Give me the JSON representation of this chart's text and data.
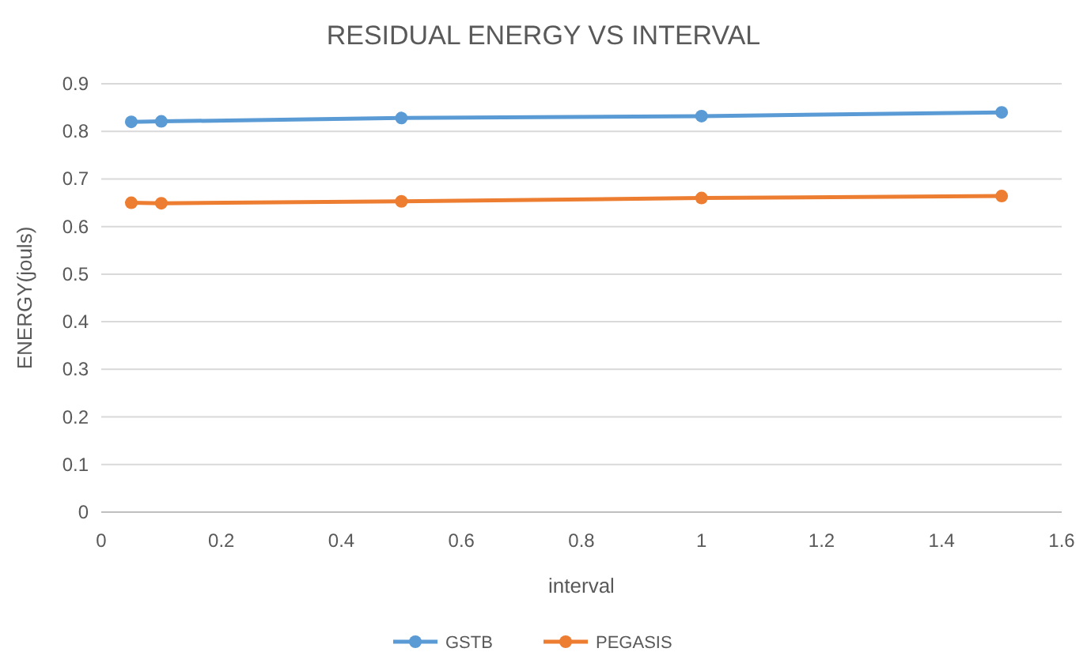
{
  "chart_data": {
    "type": "line",
    "title": "RESIDUAL ENERGY VS INTERVAL",
    "xlabel": "interval",
    "ylabel": "ENERGY(jouls)",
    "x": [
      0.05,
      0.1,
      0.5,
      1,
      1.5
    ],
    "series": [
      {
        "name": "GSTB",
        "color": "#5b9bd5",
        "values": [
          0.82,
          0.821,
          0.828,
          0.832,
          0.84
        ]
      },
      {
        "name": "PEGASIS",
        "color": "#ed7d31",
        "values": [
          0.65,
          0.649,
          0.653,
          0.66,
          0.664
        ]
      }
    ],
    "xlim": [
      0,
      1.6
    ],
    "xticks": [
      0,
      0.2,
      0.4,
      0.6,
      0.8,
      1,
      1.2,
      1.4,
      1.6
    ],
    "ylim": [
      0,
      0.9
    ],
    "yticks": [
      0,
      0.1,
      0.2,
      0.3,
      0.4,
      0.5,
      0.6,
      0.7,
      0.8,
      0.9
    ],
    "grid": "y",
    "legend": "bottom",
    "marker": "circle",
    "line_style": "solid"
  }
}
